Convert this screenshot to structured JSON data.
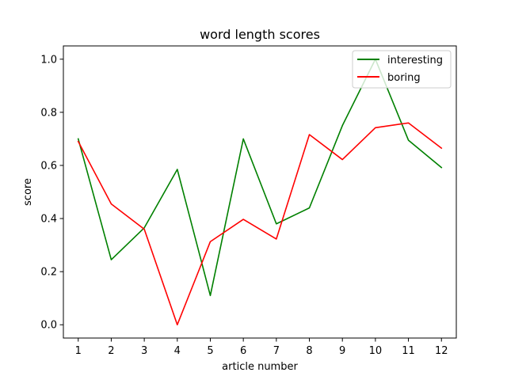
{
  "chart_data": {
    "type": "line",
    "title": "word length scores",
    "xlabel": "article number",
    "ylabel": "score",
    "x": [
      1,
      2,
      3,
      4,
      5,
      6,
      7,
      8,
      9,
      10,
      11,
      12
    ],
    "xlim": [
      0.55,
      12.45
    ],
    "ylim": [
      -0.05,
      1.05
    ],
    "yticks": [
      0.0,
      0.2,
      0.4,
      0.6,
      0.8,
      1.0
    ],
    "yticklabels": [
      "0.0",
      "0.2",
      "0.4",
      "0.6",
      "0.8",
      "1.0"
    ],
    "grid": false,
    "legend_position": "upper right",
    "series": [
      {
        "name": "interesting",
        "color": "#008000",
        "values": [
          0.7,
          0.245,
          0.365,
          0.585,
          0.11,
          0.7,
          0.38,
          0.44,
          0.75,
          1.0,
          0.695,
          0.592
        ]
      },
      {
        "name": "boring",
        "color": "#ff0000",
        "values": [
          0.69,
          0.455,
          0.36,
          0.0,
          0.313,
          0.397,
          0.323,
          0.716,
          0.622,
          0.742,
          0.76,
          0.665
        ]
      }
    ]
  }
}
